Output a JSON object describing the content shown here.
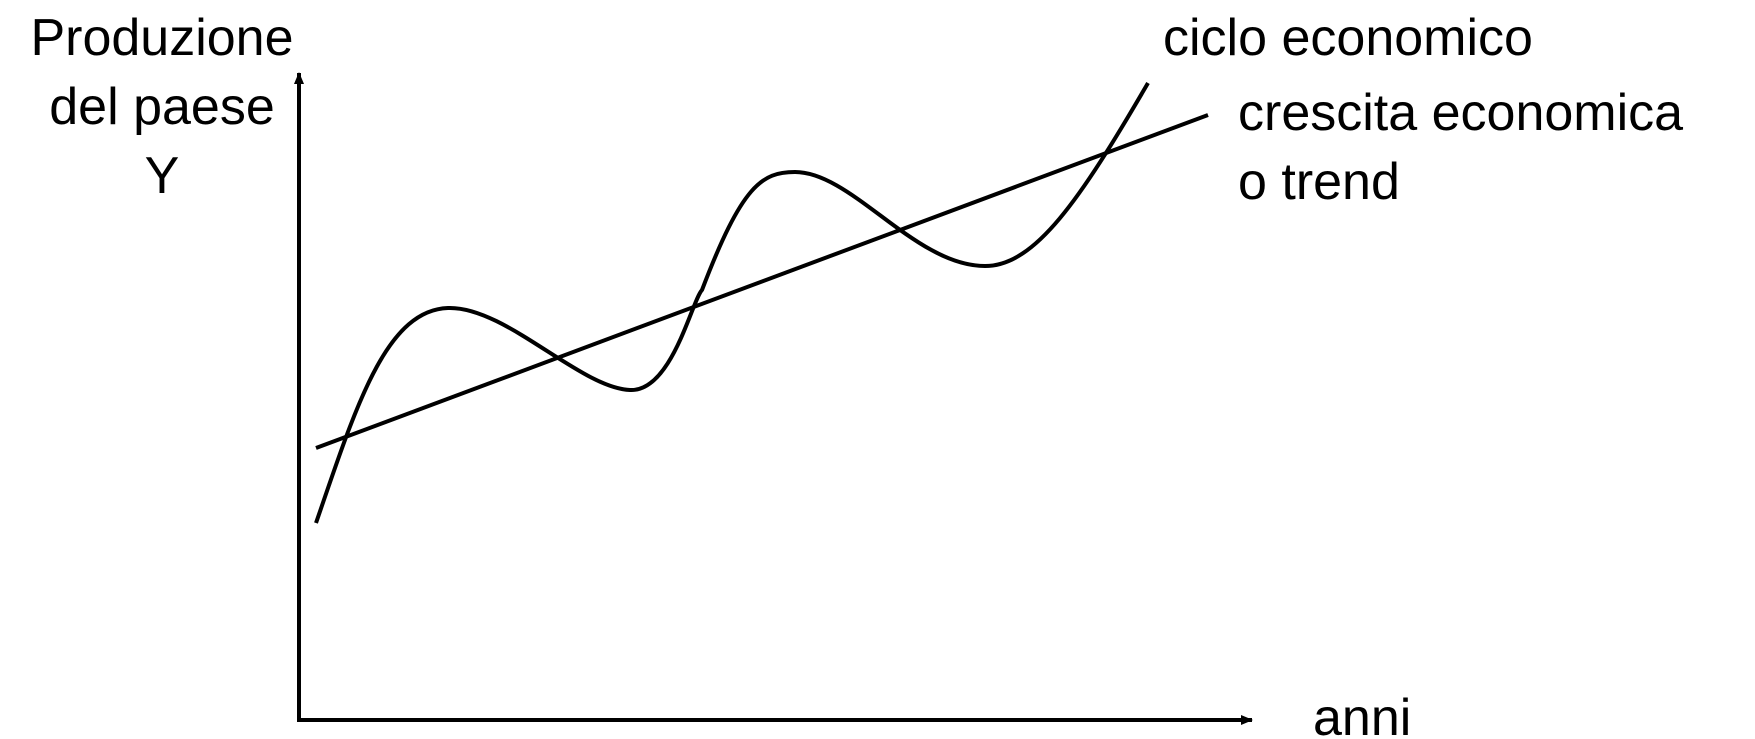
{
  "y_axis": {
    "label_lines": [
      "Produzione",
      "del paese",
      "Y"
    ]
  },
  "x_axis": {
    "label": "anni"
  },
  "curves": {
    "cycle_label": "ciclo economico",
    "trend_label_lines": [
      "crescita economica",
      "o trend"
    ]
  },
  "colors": {
    "stroke": "#000000",
    "background": "#ffffff"
  }
}
